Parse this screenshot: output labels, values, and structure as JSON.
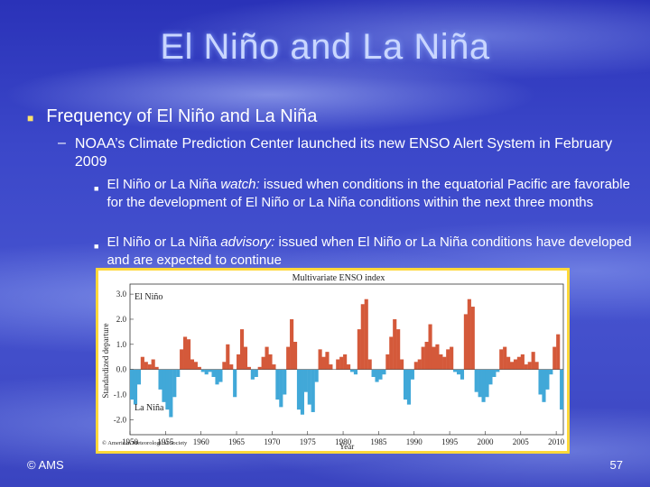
{
  "title": "El Niño and La Niña",
  "bullet1": "Frequency of El Niño and La Niña",
  "bullet2": "NOAA’s Climate Prediction Center launched its new ENSO Alert System in February 2009",
  "bullet3a": {
    "lead": "El Niño or La Niña ",
    "term": "watch:",
    "rest": " issued when conditions in the equatorial Pacific are favorable for the development of El Niño or La Niña conditions within the next three months"
  },
  "bullet3b": {
    "lead": "El Niño or La Niña ",
    "term": "advisory:",
    "rest": " issued when El Niño or La Niña conditions have developed and are expected to continue"
  },
  "footer_left": "© AMS",
  "page_number": "57",
  "colors": {
    "positive": "#d4593a",
    "negative": "#41a8d8",
    "frame": "#ffd83a"
  },
  "chart_data": {
    "type": "bar",
    "title": "Multivariate ENSO index",
    "xlabel": "Year",
    "ylabel": "Standardized departure",
    "ylim": [
      -2.6,
      3.4
    ],
    "xlim": [
      1950,
      2011
    ],
    "yticks": [
      "3.0",
      "2.0",
      "1.0",
      "0.0",
      "-1.0",
      "-2.0"
    ],
    "xticks": [
      "1950",
      "1955",
      "1960",
      "1965",
      "1970",
      "1975",
      "1980",
      "1985",
      "1990",
      "1995",
      "2000",
      "2005",
      "2010"
    ],
    "label_positive": "El Niño",
    "label_negative": "La Niña",
    "credit": "© American Meteorological Society",
    "x": [
      1950,
      1950.5,
      1951,
      1951.5,
      1952,
      1952.5,
      1953,
      1953.5,
      1954,
      1954.5,
      1955,
      1955.5,
      1956,
      1956.5,
      1957,
      1957.5,
      1958,
      1958.5,
      1959,
      1959.5,
      1960,
      1960.5,
      1961,
      1961.5,
      1962,
      1962.5,
      1963,
      1963.5,
      1964,
      1964.5,
      1965,
      1965.5,
      1966,
      1966.5,
      1967,
      1967.5,
      1968,
      1968.5,
      1969,
      1969.5,
      1970,
      1970.5,
      1971,
      1971.5,
      1972,
      1972.5,
      1973,
      1973.5,
      1974,
      1974.5,
      1975,
      1975.5,
      1976,
      1976.5,
      1977,
      1977.5,
      1978,
      1978.5,
      1979,
      1979.5,
      1980,
      1980.5,
      1981,
      1981.5,
      1982,
      1982.5,
      1983,
      1983.5,
      1984,
      1984.5,
      1985,
      1985.5,
      1986,
      1986.5,
      1987,
      1987.5,
      1988,
      1988.5,
      1989,
      1989.5,
      1990,
      1990.5,
      1991,
      1991.5,
      1992,
      1992.5,
      1993,
      1993.5,
      1994,
      1994.5,
      1995,
      1995.5,
      1996,
      1996.5,
      1997,
      1997.5,
      1998,
      1998.5,
      1999,
      1999.5,
      2000,
      2000.5,
      2001,
      2001.5,
      2002,
      2002.5,
      2003,
      2003.5,
      2004,
      2004.5,
      2005,
      2005.5,
      2006,
      2006.5,
      2007,
      2007.5,
      2008,
      2008.5,
      2009,
      2009.5,
      2010,
      2010.5
    ],
    "values": [
      -1.2,
      -1.4,
      -0.6,
      0.5,
      0.3,
      0.2,
      0.4,
      0.1,
      -0.8,
      -1.3,
      -1.6,
      -1.9,
      -1.1,
      -0.3,
      0.8,
      1.3,
      1.2,
      0.4,
      0.3,
      0.1,
      -0.1,
      -0.2,
      -0.1,
      -0.3,
      -0.6,
      -0.5,
      0.3,
      1.0,
      0.2,
      -1.1,
      0.6,
      1.6,
      0.9,
      0.1,
      -0.4,
      -0.3,
      0.1,
      0.5,
      0.9,
      0.6,
      0.2,
      -1.2,
      -1.5,
      -1.0,
      0.9,
      2.0,
      1.1,
      -1.6,
      -1.8,
      -0.9,
      -1.4,
      -1.7,
      -0.5,
      0.8,
      0.5,
      0.7,
      0.2,
      0.0,
      0.4,
      0.5,
      0.6,
      0.2,
      -0.1,
      -0.2,
      1.6,
      2.6,
      2.8,
      0.4,
      -0.3,
      -0.5,
      -0.4,
      -0.2,
      0.6,
      1.3,
      2.0,
      1.6,
      0.4,
      -1.2,
      -1.4,
      -0.4,
      0.3,
      0.4,
      0.9,
      1.1,
      1.8,
      0.9,
      1.0,
      0.6,
      0.5,
      0.8,
      0.9,
      -0.1,
      -0.2,
      -0.4,
      2.2,
      2.8,
      2.5,
      -0.9,
      -1.1,
      -1.3,
      -1.1,
      -0.6,
      -0.3,
      -0.1,
      0.8,
      0.9,
      0.5,
      0.3,
      0.4,
      0.5,
      0.6,
      0.2,
      0.3,
      0.7,
      0.3,
      -1.0,
      -1.3,
      -0.8,
      -0.2,
      0.9,
      1.4,
      -1.6
    ]
  }
}
